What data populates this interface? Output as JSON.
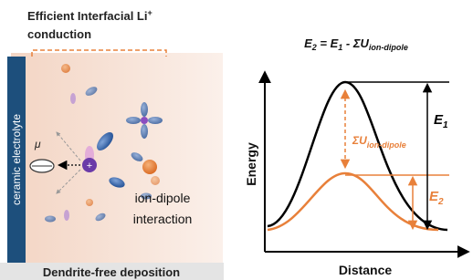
{
  "left_panel": {
    "title_line1": "Efficient Interfacial Li",
    "title_sup": "+",
    "title_line2": "conduction",
    "electrolyte_label": "ceramic electrolyte",
    "dipole_symbol": "μ",
    "ion_charge": "+",
    "interaction_line1": "ion-dipole",
    "interaction_line2": "interaction",
    "bottom_label": "Dendrite-free deposition"
  },
  "right_panel": {
    "equation": {
      "e": "E",
      "sub2": "2",
      "eq1": " = E",
      "sub1": "1",
      "minus": " - ΣU",
      "sub_id": "ion-dipole"
    },
    "barrier_label": {
      "main": "ΣU",
      "sub": "ion-dipole"
    },
    "e1_label": {
      "main": "E",
      "sub": "1"
    },
    "e2_label": {
      "main": "E",
      "sub": "2"
    },
    "y_axis_label": "Energy",
    "x_axis_label": "Distance"
  }
}
